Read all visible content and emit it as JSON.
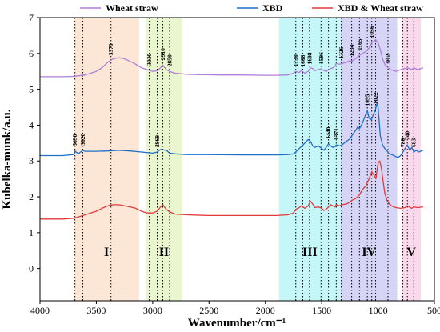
{
  "chart_data": {
    "type": "line",
    "xlabel": "Wavenumber/cm⁻¹",
    "ylabel": "Kubelka-munk/a.u.",
    "xlim": [
      4000,
      500
    ],
    "ylim": [
      -0.9,
      7
    ],
    "x_ticks": [
      4000,
      3500,
      3000,
      2500,
      2000,
      1500,
      1000,
      500
    ],
    "y_ticks": [
      0,
      1,
      2,
      3,
      4,
      5,
      6,
      7
    ],
    "legend_position": "top",
    "series": [
      {
        "name": "Wheat straw",
        "color": "#b07fd8",
        "x": [
          4000,
          3800,
          3700,
          3600,
          3500,
          3450,
          3400,
          3350,
          3300,
          3250,
          3200,
          3150,
          3100,
          3050,
          3000,
          2960,
          2930,
          2910,
          2880,
          2850,
          2800,
          2700,
          2600,
          2400,
          2200,
          2000,
          1900,
          1800,
          1750,
          1730,
          1700,
          1680,
          1650,
          1620,
          1600,
          1580,
          1560,
          1530,
          1506,
          1480,
          1460,
          1440,
          1420,
          1400,
          1380,
          1371,
          1340,
          1320,
          1280,
          1250,
          1234,
          1200,
          1165,
          1140,
          1110,
          1080,
          1056,
          1035,
          1020,
          1000,
          980,
          960,
          940,
          912,
          890,
          860,
          840,
          800,
          760,
          740,
          700,
          683,
          650,
          600
        ],
        "y": [
          5.35,
          5.35,
          5.36,
          5.4,
          5.5,
          5.6,
          5.75,
          5.85,
          5.88,
          5.85,
          5.78,
          5.7,
          5.6,
          5.55,
          5.5,
          5.52,
          5.6,
          5.68,
          5.55,
          5.5,
          5.45,
          5.42,
          5.41,
          5.4,
          5.4,
          5.39,
          5.39,
          5.4,
          5.45,
          5.5,
          5.47,
          5.52,
          5.45,
          5.5,
          5.6,
          5.58,
          5.52,
          5.55,
          5.57,
          5.52,
          5.5,
          5.55,
          5.58,
          5.6,
          5.65,
          5.72,
          5.7,
          5.72,
          5.75,
          5.8,
          5.78,
          5.85,
          5.95,
          6.0,
          6.05,
          6.15,
          6.3,
          6.35,
          6.38,
          6.3,
          6.1,
          5.85,
          5.7,
          5.6,
          5.55,
          5.52,
          5.5,
          5.55,
          5.58,
          5.6,
          5.55,
          5.6,
          5.55,
          5.6
        ]
      },
      {
        "name": "XBD",
        "color": "#1f6fc9",
        "x": [
          4000,
          3800,
          3700,
          3690,
          3660,
          3640,
          3620,
          3600,
          3500,
          3400,
          3300,
          3200,
          3100,
          3000,
          2960,
          2930,
          2880,
          2850,
          2800,
          2700,
          2500,
          2200,
          2000,
          1900,
          1800,
          1750,
          1730,
          1700,
          1680,
          1650,
          1620,
          1600,
          1580,
          1560,
          1530,
          1500,
          1480,
          1460,
          1440,
          1420,
          1400,
          1380,
          1371,
          1340,
          1320,
          1300,
          1280,
          1250,
          1234,
          1200,
          1180,
          1165,
          1140,
          1110,
          1095,
          1080,
          1060,
          1040,
          1022,
          1010,
          1000,
          990,
          980,
          960,
          940,
          920,
          900,
          880,
          860,
          840,
          820,
          800,
          780,
          760,
          740,
          720,
          700,
          683,
          660,
          640,
          600
        ],
        "y": [
          3.15,
          3.15,
          3.18,
          3.28,
          3.2,
          3.25,
          3.3,
          3.27,
          3.27,
          3.28,
          3.3,
          3.28,
          3.25,
          3.22,
          3.25,
          3.32,
          3.3,
          3.22,
          3.2,
          3.18,
          3.18,
          3.17,
          3.17,
          3.17,
          3.18,
          3.2,
          3.25,
          3.35,
          3.4,
          3.5,
          3.6,
          3.55,
          3.42,
          3.38,
          3.42,
          3.35,
          3.3,
          3.38,
          3.48,
          3.42,
          3.38,
          3.4,
          3.45,
          3.42,
          3.45,
          3.5,
          3.55,
          3.62,
          3.7,
          3.85,
          3.95,
          3.9,
          4.05,
          4.3,
          4.4,
          4.2,
          4.15,
          4.3,
          4.45,
          4.6,
          4.5,
          4.1,
          3.7,
          3.45,
          3.35,
          3.28,
          3.2,
          3.18,
          3.15,
          3.12,
          3.1,
          3.15,
          3.25,
          3.35,
          3.45,
          3.3,
          3.38,
          3.25,
          3.3,
          3.25,
          3.3
        ]
      },
      {
        "name": "XBD & Wheat straw",
        "color": "#e03b3b",
        "x": [
          4000,
          3800,
          3700,
          3650,
          3600,
          3500,
          3450,
          3400,
          3350,
          3300,
          3250,
          3200,
          3150,
          3100,
          3050,
          3000,
          2960,
          2930,
          2910,
          2880,
          2850,
          2800,
          2700,
          2500,
          2200,
          2000,
          1900,
          1800,
          1750,
          1730,
          1700,
          1680,
          1650,
          1620,
          1600,
          1580,
          1560,
          1530,
          1500,
          1480,
          1460,
          1440,
          1420,
          1400,
          1380,
          1371,
          1340,
          1320,
          1280,
          1250,
          1234,
          1200,
          1165,
          1140,
          1110,
          1080,
          1056,
          1035,
          1020,
          1000,
          985,
          970,
          960,
          940,
          920,
          900,
          880,
          860,
          840,
          800,
          760,
          740,
          700,
          683,
          650,
          600
        ],
        "y": [
          1.38,
          1.38,
          1.4,
          1.45,
          1.5,
          1.6,
          1.68,
          1.75,
          1.78,
          1.78,
          1.75,
          1.72,
          1.68,
          1.6,
          1.55,
          1.55,
          1.6,
          1.72,
          1.78,
          1.65,
          1.58,
          1.52,
          1.5,
          1.48,
          1.48,
          1.48,
          1.48,
          1.5,
          1.55,
          1.65,
          1.7,
          1.75,
          1.68,
          1.75,
          1.88,
          1.8,
          1.7,
          1.72,
          1.68,
          1.62,
          1.65,
          1.72,
          1.78,
          1.75,
          1.72,
          1.78,
          1.75,
          1.78,
          1.8,
          1.85,
          1.9,
          1.95,
          2.05,
          2.2,
          2.3,
          2.5,
          2.7,
          2.6,
          2.5,
          2.95,
          3.0,
          2.8,
          2.55,
          2.1,
          1.9,
          1.8,
          1.75,
          1.72,
          1.7,
          1.68,
          1.7,
          1.75,
          1.68,
          1.72,
          1.7,
          1.72
        ]
      }
    ],
    "shaded_regions": [
      {
        "label": "I",
        "x_from": 3700,
        "x_to": 3120,
        "color": "#f9c9a4",
        "opacity": 0.45
      },
      {
        "label": "II",
        "x_from": 3060,
        "x_to": 2740,
        "color": "#d8f0a6",
        "opacity": 0.55
      },
      {
        "label": "III",
        "x_from": 1880,
        "x_to": 1330,
        "color": "#9ef0f4",
        "opacity": 0.6
      },
      {
        "label": "IV",
        "x_from": 1330,
        "x_to": 830,
        "color": "#c6c3f2",
        "opacity": 0.7
      },
      {
        "label": "V",
        "x_from": 790,
        "x_to": 620,
        "color": "#f8c0e0",
        "opacity": 0.6
      }
    ],
    "peak_lines": [
      {
        "x": 3690,
        "label": "3690",
        "series": 1
      },
      {
        "x": 3620,
        "label": "3620",
        "series": 1
      },
      {
        "x": 3370,
        "label": "3370",
        "series": 0
      },
      {
        "x": 3030,
        "label": "3030",
        "series": 0
      },
      {
        "x": 2960,
        "label": "2960",
        "series": 1
      },
      {
        "x": 2910,
        "label": "2910",
        "series": 0
      },
      {
        "x": 2850,
        "label": "2850",
        "series": 0
      },
      {
        "x": 1730,
        "label": "1730",
        "series": 0
      },
      {
        "x": 1668,
        "label": "1668",
        "series": 0
      },
      {
        "x": 1608,
        "label": "1608",
        "series": 0
      },
      {
        "x": 1506,
        "label": "1506",
        "series": 0
      },
      {
        "x": 1440,
        "label": "1440",
        "series": 1
      },
      {
        "x": 1371,
        "label": "1371",
        "series": 1
      },
      {
        "x": 1326,
        "label": "1326",
        "series": 0
      },
      {
        "x": 1234,
        "label": "1234",
        "series": 0
      },
      {
        "x": 1165,
        "label": "1165",
        "series": 0
      },
      {
        "x": 1095,
        "label": "1095",
        "series": 1
      },
      {
        "x": 1056,
        "label": "1056",
        "series": 0
      },
      {
        "x": 1022,
        "label": "1022",
        "series": 1
      },
      {
        "x": 912,
        "label": "912",
        "series": 0
      },
      {
        "x": 780,
        "label": "780",
        "series": 1
      },
      {
        "x": 740,
        "label": "740",
        "series": 1
      },
      {
        "x": 683,
        "label": "683",
        "series": 1
      }
    ]
  }
}
